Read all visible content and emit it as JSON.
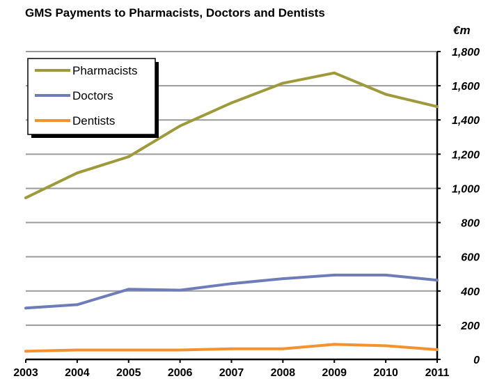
{
  "chart_data": {
    "type": "line",
    "title": "GMS Payments to Pharmacists, Doctors and Dentists",
    "unit": "€m",
    "x": [
      "2003",
      "2004",
      "2005",
      "2006",
      "2007",
      "2008",
      "2009",
      "2010",
      "2011"
    ],
    "series": [
      {
        "name": "Pharmacists",
        "color": "#9e9a3c",
        "values": [
          945,
          1090,
          1185,
          1365,
          1500,
          1615,
          1675,
          1550,
          1478
        ]
      },
      {
        "name": "Doctors",
        "color": "#6e7cba",
        "values": [
          300,
          320,
          410,
          405,
          443,
          472,
          493,
          493,
          463
        ]
      },
      {
        "name": "Dentists",
        "color": "#f5922f",
        "values": [
          48,
          55,
          55,
          55,
          62,
          62,
          88,
          80,
          57
        ]
      }
    ],
    "ylim": [
      0,
      1800
    ],
    "yticks": [
      0,
      200,
      400,
      600,
      800,
      1000,
      1200,
      1400,
      1600,
      1800
    ],
    "ytick_labels": [
      "0",
      "200",
      "400",
      "600",
      "800",
      "1,000",
      "1,200",
      "1,400",
      "1,600",
      "1,800"
    ],
    "grid": true,
    "legend_position": "top-left"
  }
}
